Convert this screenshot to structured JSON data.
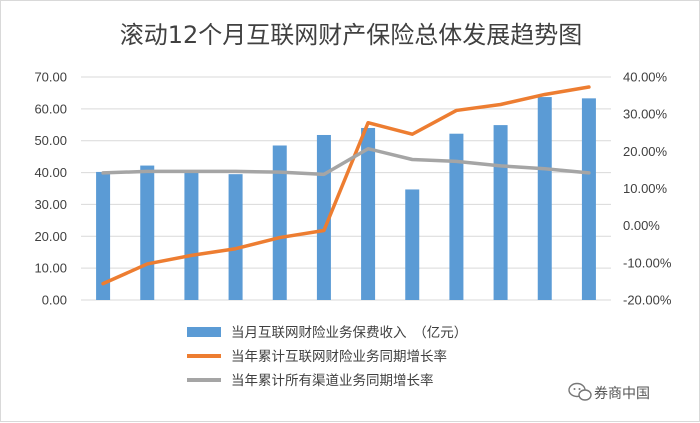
{
  "chart_data": {
    "type": "bar",
    "title": "滚动12个月互联网财产保险总体发展趋势图",
    "categories": [
      "",
      "",
      "",
      "",
      "",
      "",
      "",
      "",
      "",
      "",
      "",
      ""
    ],
    "y_left": {
      "min": 0,
      "max": 70,
      "step": 10,
      "tick_labels": [
        "0.00",
        "10.00",
        "20.00",
        "30.00",
        "40.00",
        "50.00",
        "60.00",
        "70.00"
      ]
    },
    "y_right": {
      "min": -20,
      "max": 40,
      "step": 10,
      "tick_labels": [
        "-20.00%",
        "-10.00%",
        "0.00%",
        "10.00%",
        "20.00%",
        "30.00%",
        "40.00%"
      ]
    },
    "grid": true,
    "legend_position": "bottom",
    "series": [
      {
        "name": "当月互联网财险业务保费收入　（亿元）",
        "kind": "bar",
        "axis": "left",
        "color": "#5b9bd5",
        "values": [
          40.2,
          42.2,
          40.5,
          39.5,
          48.5,
          51.8,
          54.0,
          34.7,
          52.2,
          54.9,
          63.7,
          63.3
        ]
      },
      {
        "name": "当年累计互联网财险业务同期增长率",
        "kind": "line",
        "axis": "right",
        "color": "#ed7d31",
        "values": [
          -15.6,
          -10.3,
          -8.0,
          -6.2,
          -3.2,
          -1.3,
          27.7,
          24.6,
          31.0,
          32.6,
          35.3,
          37.3
        ]
      },
      {
        "name": "当年累计所有渠道业务同期增长率",
        "kind": "line",
        "axis": "right",
        "color": "#a5a5a5",
        "values": [
          14.2,
          14.6,
          14.6,
          14.6,
          14.4,
          13.8,
          20.7,
          17.8,
          17.3,
          16.1,
          15.3,
          14.2
        ]
      }
    ]
  },
  "watermark": {
    "text": "券商中国",
    "icon": "chat-bubble-icon"
  }
}
